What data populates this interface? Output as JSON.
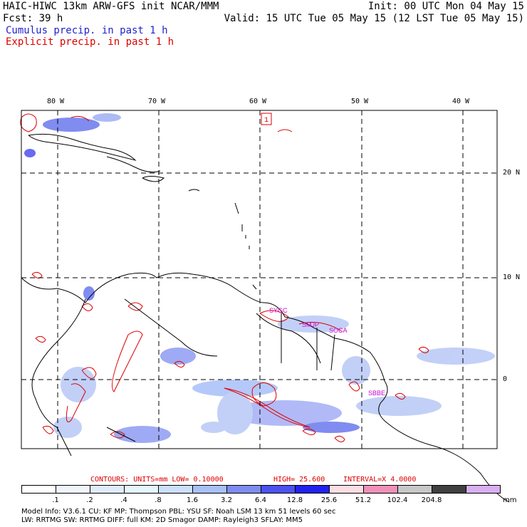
{
  "header": {
    "model_line": "HAIC-HIWC 13km ARW-GFS init   NCAR/MMM",
    "init_line": "Init: 00 UTC Mon 04 May 15",
    "fcst_line": "Fcst:   39 h",
    "valid_line": "Valid: 15 UTC Tue 05 May 15 (12 LST Tue 05 May 15)",
    "legend_cumulus": "Cumulus precip. in past 1 h",
    "legend_explicit": "Explicit precip. in past 1 h"
  },
  "map": {
    "lon_labels": [
      "80 W",
      "70 W",
      "60 W",
      "50 W",
      "40 W"
    ],
    "lat_labels": [
      "20 N",
      "10 N",
      "0"
    ],
    "station_labels": [
      "SMJP",
      "SOCA",
      "SBBE",
      "SYGC"
    ],
    "boxed_label": "1",
    "colors": {
      "cumulus": "#2222cc",
      "explicit": "#dd0000",
      "station": "#cc00cc",
      "land": "#000000"
    }
  },
  "contour_info": {
    "contours_label": "CONTOURS:  UNITS=mm  LOW= 0.10000",
    "high_label": "HIGH=  25.600",
    "interval_label": "INTERVAL=X  4.0000"
  },
  "colorbar": {
    "unit": "mm",
    "levels": [
      ".1",
      ".2",
      ".4",
      ".8",
      "1.6",
      "3.2",
      "6.4",
      "12.8",
      "25.6",
      "51.2",
      "102.4",
      "204.8"
    ],
    "colors": [
      "#ffffff",
      "#f0f4fc",
      "#e0ecfb",
      "#e6f6ff",
      "#cce0fb",
      "#a8c0f8",
      "#7e8cf2",
      "#4c52f0",
      "#2222f0",
      "#fcdde4",
      "#f090b8",
      "#c8c8c8",
      "#404040",
      "#d8b0f0"
    ]
  },
  "footer": {
    "line1": "Model Info: V3.6.1    CU: KF      MP: Thompson    PBL: YSU      SF: Noah LSM     13 km    51 levels   60 sec",
    "line2": "           LW: RRTMG    SW: RRTMG  DIFF: full     KM: 2D Smagor DAMP: Rayleigh3  SFLAY: MM5"
  }
}
